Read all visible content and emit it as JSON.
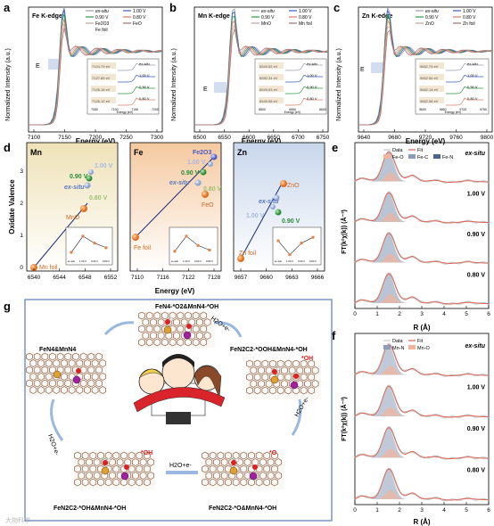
{
  "panels": {
    "a": {
      "letter": "a",
      "title": "Fe K-edge",
      "xlabel": "Energy (eV)",
      "ylabel": "Normalized Intensity (a.u.)",
      "xticks": [
        "7100",
        "7150",
        "7200",
        "7250",
        "7300"
      ],
      "e0": "E",
      "legend": [
        "ex-situ",
        "1.00 V",
        "0.90 V",
        "0.80 V",
        "Fe2O3",
        "FeO",
        "Fe foil"
      ],
      "inset_labels": [
        "7124.79 eV",
        "7127.85 eV",
        "7126.18 eV",
        "7126.12 eV"
      ],
      "inset_series": [
        "ex-situ",
        "1.00 V",
        "0.90 V",
        "0.80 V"
      ],
      "inset_xticks": [
        "7050",
        "7100",
        "7150",
        "7200"
      ],
      "inset_xlabel": "Energy (eV)"
    },
    "b": {
      "letter": "b",
      "title": "Mn K-edge",
      "xlabel": "Energy (eV)",
      "ylabel": "Normalized Intensity (a.u.)",
      "xticks": [
        "6500",
        "6550",
        "6600",
        "6650",
        "6700",
        "6750"
      ],
      "e0": "E",
      "legend": [
        "ex-situ",
        "1.00 V",
        "0.90 V",
        "0.80 V",
        "MnO",
        "Mn foil"
      ],
      "inset_labels": [
        "6549.53 eV",
        "6550.34 eV",
        "6549.83 eV",
        "6549.58 eV"
      ],
      "inset_series": [
        "ex-situ",
        "1.00 V",
        "0.90 V",
        "0.80 V"
      ],
      "inset_xticks": [
        "6500",
        "6550",
        "6600"
      ],
      "inset_xlabel": "Energy (eV)"
    },
    "c": {
      "letter": "c",
      "title": "Zn K-edge",
      "xlabel": "Energy (eV)",
      "ylabel": "Normalized Intensity (a.u.)",
      "xticks": [
        "9640",
        "9680",
        "9720",
        "9760",
        "9800"
      ],
      "e0": "E",
      "legend": [
        "ex-situ",
        "1.00 V",
        "0.90 V",
        "0.80 V",
        "ZnO",
        "Zn foil"
      ],
      "inset_labels": [
        "9662.75 eV",
        "9662.56 eV",
        "9662.14 eV",
        "9662.58 eV"
      ],
      "inset_series": [
        "ex-situ",
        "1.00 V",
        "0.90 V",
        "0.80 V"
      ],
      "inset_xticks": [
        "9600",
        "9650",
        "9700",
        "9750"
      ],
      "inset_xlabel": "Energy (eV)"
    },
    "d": {
      "letter": "d",
      "ylabel": "Oxidate Valence",
      "xlabel": "Energy (eV)",
      "yticks": [
        "0",
        "1",
        "2",
        "3"
      ],
      "mn": {
        "title": "Mn",
        "xticks": [
          "6540",
          "6544",
          "6548",
          "6552"
        ],
        "labels": [
          "Mn foil",
          "MnO",
          "ex-situ",
          "0.80 V",
          "0.90 V",
          "1.00 V"
        ]
      },
      "fe": {
        "title": "Fe",
        "xticks": [
          "7110",
          "7116",
          "7122",
          "7128"
        ],
        "labels": [
          "Fe foil",
          "FeO",
          "Fe2O3",
          "0.80 V",
          "0.90 V",
          "1.00 V",
          "ex-situ"
        ]
      },
      "zn": {
        "title": "Zn",
        "xticks": [
          "9657",
          "9660",
          "9663",
          "9666"
        ],
        "labels": [
          "Zn foil",
          "ZnO",
          "ex-situ",
          "1.00 V",
          "0.90 V"
        ]
      },
      "inset_xticks": [
        "ex-situ",
        "1.00 V",
        "0.90 V",
        "0.80 V"
      ]
    },
    "e": {
      "letter": "e",
      "ylabel": "FT(k²χ(k)) (Å⁻³)",
      "xlabel": "R (Å)",
      "xticks": [
        "0",
        "1",
        "2",
        "3",
        "4",
        "5",
        "6"
      ],
      "legend": [
        "Data",
        "Fit",
        "Fe-O",
        "Fe-C",
        "Fe-N"
      ],
      "rows": [
        "ex-situ",
        "1.00 V",
        "0.90 V",
        "0.80 V"
      ]
    },
    "f": {
      "letter": "f",
      "ylabel": "FT(k²χ(k)) (Å⁻³)",
      "xlabel": "R (Å)",
      "xticks": [
        "0",
        "1",
        "2",
        "3",
        "4",
        "5",
        "6"
      ],
      "legend": [
        "Data",
        "Fit",
        "Mn-N",
        "Mn-O"
      ],
      "rows": [
        "ex-situ",
        "1.00 V",
        "0.90 V",
        "0.80 V"
      ]
    },
    "g": {
      "letter": "g",
      "labels": [
        "FeN4-*O2&MnN4-*OH",
        "FeN4&MnN4",
        "FeN2C2-*OOH&MnN4-*OH",
        "FeN2C2-*OH&MnN4-*OH",
        "FeN2C2-*O&MnN4-*OH"
      ],
      "steps": [
        "H2O+e-",
        "H2O+e-",
        "H2O+e-",
        "H2O+e-",
        "H2O+e-"
      ],
      "species": [
        "*OH",
        "*OH",
        "*O"
      ]
    }
  },
  "watermark": "大物科学",
  "colors": {
    "exsitu": "#9aa0a8",
    "v100": "#3a5fc8",
    "v090": "#2e9a44",
    "v080": "#e07a6a",
    "ref": "#c9a0a0",
    "fit": "#e06050"
  }
}
